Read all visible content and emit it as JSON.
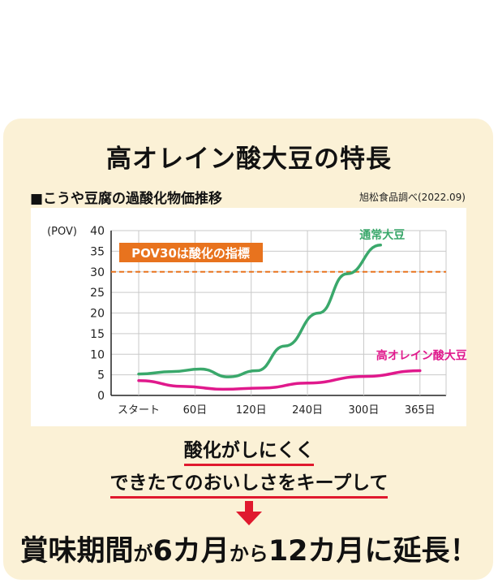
{
  "header": {
    "title": "高オレイン酸大豆の特長",
    "subtitle": "■こうや豆腐の過酸化物価推移",
    "source": "旭松食品調べ(2022.09)"
  },
  "chart_data": {
    "type": "line",
    "ylabel": "(POV)",
    "ylim": [
      0,
      40
    ],
    "yticks": [
      0,
      5,
      10,
      15,
      20,
      25,
      30,
      35,
      40
    ],
    "categories": [
      "スタート",
      "60日",
      "120日",
      "240日",
      "300日",
      "365日"
    ],
    "grid": true,
    "threshold": {
      "value": 30,
      "label": "POV30は酸化の指標",
      "color": "#e8731e"
    },
    "series": [
      {
        "name": "通常大豆",
        "color": "#3aa86b",
        "points": [
          [
            0,
            5.2
          ],
          [
            0.6,
            5.8
          ],
          [
            1.1,
            6.4
          ],
          [
            1.6,
            4.5
          ],
          [
            2.1,
            6.0
          ],
          [
            2.6,
            12.0
          ],
          [
            3.2,
            20.0
          ],
          [
            3.7,
            29.5
          ],
          [
            4.3,
            36.5
          ]
        ]
      },
      {
        "name": "高オレイン酸大豆",
        "color": "#e0198c",
        "points": [
          [
            0,
            3.6
          ],
          [
            0.8,
            2.2
          ],
          [
            1.5,
            1.5
          ],
          [
            2.2,
            1.8
          ],
          [
            3.0,
            3.0
          ],
          [
            4.0,
            4.6
          ],
          [
            5.0,
            6.0
          ]
        ]
      }
    ]
  },
  "message": {
    "line1": "酸化がしにくく",
    "line2": "できたてのおいしさをキープして",
    "final_part1": "賞味期間",
    "final_part2": "が",
    "final_part3": "6カ月",
    "final_part4": "から",
    "final_part5": "12カ月",
    "final_part6": "に延長！"
  },
  "colors": {
    "card_bg": "#fbf1d6",
    "accent_red": "#e0192e",
    "threshold_orange": "#e8731e"
  }
}
